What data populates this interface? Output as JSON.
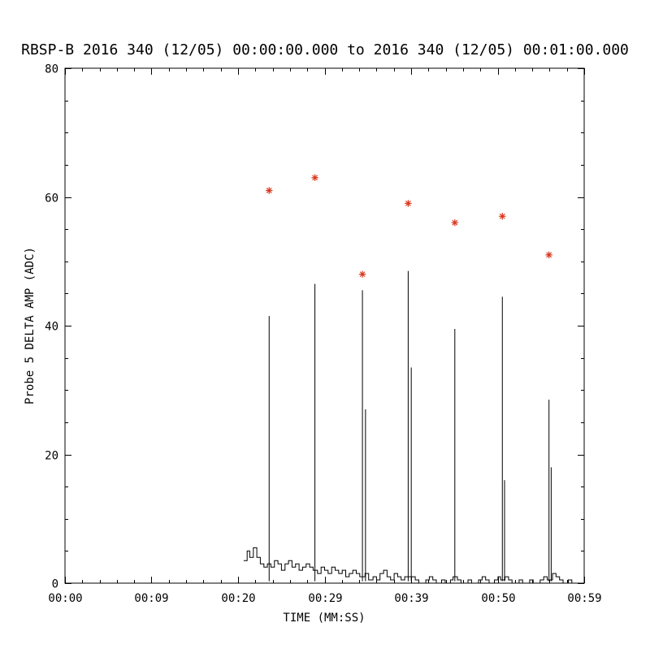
{
  "chart_data": {
    "type": "line",
    "title": "RBSP-B 2016 340 (12/05) 00:00:00.000 to 2016 340 (12/05) 00:01:00.000",
    "xlabel": "TIME (MM:SS)",
    "ylabel": "Probe 5 DELTA AMP (ADC)",
    "xlim": [
      0,
      59
    ],
    "ylim": [
      0,
      80
    ],
    "grid": false,
    "legend": "none",
    "line_color": "#000000",
    "marker_color": "#d9381e",
    "marker": "asterisk",
    "x_ticks": [
      {
        "value": 0,
        "label": "00:00"
      },
      {
        "value": 9.833,
        "label": "00:09"
      },
      {
        "value": 19.667,
        "label": "00:20"
      },
      {
        "value": 29.5,
        "label": "00:29"
      },
      {
        "value": 39.333,
        "label": "00:39"
      },
      {
        "value": 49.167,
        "label": "00:50"
      },
      {
        "value": 59,
        "label": "00:59"
      }
    ],
    "y_ticks": [
      {
        "value": 0,
        "label": "0"
      },
      {
        "value": 20,
        "label": "20"
      },
      {
        "value": 40,
        "label": "40"
      },
      {
        "value": 60,
        "label": "60"
      },
      {
        "value": 80,
        "label": "80"
      }
    ],
    "peaks": {
      "x_seconds": [
        23.2,
        28.4,
        33.8,
        39.0,
        44.3,
        49.7,
        55.0
      ],
      "y_adc": [
        61,
        63,
        48,
        59,
        56,
        57,
        51
      ]
    },
    "spikes": [
      {
        "t": 23.2,
        "peak_marker": 61,
        "line_top": 41.5,
        "secondary": null
      },
      {
        "t": 28.4,
        "peak_marker": 63,
        "line_top": 46.5,
        "secondary": null
      },
      {
        "t": 33.8,
        "peak_marker": 48,
        "line_top": 45.5,
        "secondary": {
          "t": 34.15,
          "top": 27
        }
      },
      {
        "t": 39.0,
        "peak_marker": 59,
        "line_top": 48.5,
        "secondary": {
          "t": 39.35,
          "top": 33.5
        }
      },
      {
        "t": 44.3,
        "peak_marker": 56,
        "line_top": 39.5,
        "secondary": null
      },
      {
        "t": 49.7,
        "peak_marker": 57,
        "line_top": 44.5,
        "secondary": {
          "t": 49.95,
          "top": 16
        }
      },
      {
        "t": 55.0,
        "peak_marker": 51,
        "line_top": 28.5,
        "secondary": {
          "t": 55.25,
          "top": 18
        }
      }
    ],
    "series": [
      {
        "name": "Probe 5 DELTA AMP baseline",
        "mode": "histogram-step",
        "points": [
          [
            20.3,
            3.5
          ],
          [
            20.7,
            5.0
          ],
          [
            21.0,
            4.0
          ],
          [
            21.4,
            5.5
          ],
          [
            21.8,
            4.0
          ],
          [
            22.2,
            3.0
          ],
          [
            22.6,
            2.5
          ],
          [
            23.0,
            3.0
          ],
          [
            23.4,
            2.5
          ],
          [
            23.8,
            3.5
          ],
          [
            24.2,
            3.0
          ],
          [
            24.6,
            2.0
          ],
          [
            25.0,
            3.0
          ],
          [
            25.4,
            3.5
          ],
          [
            25.8,
            2.5
          ],
          [
            26.2,
            3.0
          ],
          [
            26.6,
            2.0
          ],
          [
            27.0,
            2.5
          ],
          [
            27.4,
            3.0
          ],
          [
            27.8,
            2.5
          ],
          [
            28.2,
            2.0
          ],
          [
            28.7,
            1.5
          ],
          [
            29.1,
            2.5
          ],
          [
            29.5,
            2.0
          ],
          [
            29.9,
            1.5
          ],
          [
            30.3,
            2.5
          ],
          [
            30.7,
            2.0
          ],
          [
            31.1,
            1.5
          ],
          [
            31.5,
            2.0
          ],
          [
            31.9,
            1.0
          ],
          [
            32.3,
            1.5
          ],
          [
            32.7,
            2.0
          ],
          [
            33.1,
            1.5
          ],
          [
            33.5,
            1.0
          ],
          [
            34.1,
            1.5
          ],
          [
            34.5,
            0.5
          ],
          [
            35.0,
            1.0
          ],
          [
            35.4,
            0.5
          ],
          [
            35.8,
            1.5
          ],
          [
            36.2,
            2.0
          ],
          [
            36.6,
            1.0
          ],
          [
            37.0,
            0.5
          ],
          [
            37.4,
            1.5
          ],
          [
            37.8,
            1.0
          ],
          [
            38.2,
            0.5
          ],
          [
            38.6,
            1.0
          ],
          [
            39.4,
            1.0
          ],
          [
            39.8,
            0.5
          ],
          [
            40.2,
            0.0
          ],
          [
            41.0,
            0.5
          ],
          [
            41.4,
            1.0
          ],
          [
            41.8,
            0.5
          ],
          [
            42.2,
            0.0
          ],
          [
            42.8,
            0.5
          ],
          [
            43.2,
            0.0
          ],
          [
            43.8,
            0.5
          ],
          [
            44.1,
            1.0
          ],
          [
            44.6,
            0.5
          ],
          [
            45.0,
            0.0
          ],
          [
            45.8,
            0.5
          ],
          [
            46.2,
            0.0
          ],
          [
            47.0,
            0.5
          ],
          [
            47.4,
            1.0
          ],
          [
            47.8,
            0.5
          ],
          [
            48.2,
            0.0
          ],
          [
            48.8,
            0.5
          ],
          [
            49.2,
            1.0
          ],
          [
            49.5,
            0.5
          ],
          [
            50.0,
            1.0
          ],
          [
            50.4,
            0.5
          ],
          [
            50.8,
            0.0
          ],
          [
            51.6,
            0.5
          ],
          [
            52.0,
            0.0
          ],
          [
            52.8,
            0.5
          ],
          [
            53.2,
            0.0
          ],
          [
            54.0,
            0.5
          ],
          [
            54.4,
            1.0
          ],
          [
            54.8,
            0.5
          ],
          [
            55.4,
            1.5
          ],
          [
            55.8,
            1.0
          ],
          [
            56.2,
            0.5
          ],
          [
            56.6,
            0.0
          ],
          [
            57.2,
            0.5
          ],
          [
            57.6,
            0.0
          ],
          [
            59.0,
            0.0
          ]
        ]
      }
    ]
  }
}
